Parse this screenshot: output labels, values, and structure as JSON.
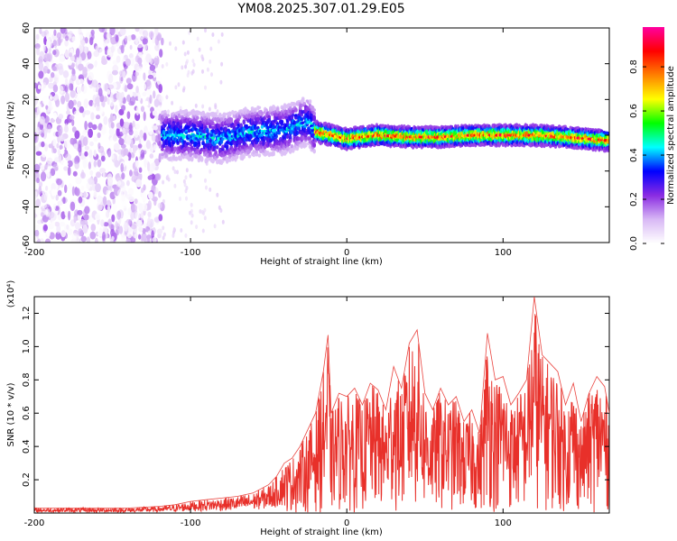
{
  "figure": {
    "title": "YM08.2025.307.01.29.E05"
  },
  "colorbar": {
    "label": "Normalized spectral amplitude",
    "ticks": [
      "0.0",
      "0.2",
      "0.4",
      "0.6",
      "0.8"
    ],
    "tick_values": [
      0.0,
      0.2,
      0.4,
      0.6,
      0.8
    ],
    "range": [
      0.0,
      0.98
    ],
    "colormap_stops": [
      "#ffffff",
      "#d8b8f5",
      "#8a2be2",
      "#0000ff",
      "#00ffff",
      "#00ff00",
      "#ffff00",
      "#ff8000",
      "#ff0000",
      "#ff00a0"
    ]
  },
  "chart_data": [
    {
      "type": "heatmap",
      "title": "YM08.2025.307.01.29.E05",
      "xlabel": "Height of straight line (km)",
      "ylabel": "Frequency (Hz)",
      "xlim": [
        -200,
        168
      ],
      "ylim": [
        -60,
        60
      ],
      "x_ticks": [
        -200,
        -100,
        0,
        100
      ],
      "x_tick_labels": [
        "-200",
        "-100",
        "0",
        "100"
      ],
      "y_ticks": [
        -60,
        -40,
        -20,
        0,
        20,
        40,
        60
      ],
      "y_tick_labels": [
        "-60",
        "-40",
        "-20",
        "0",
        "20",
        "40",
        "60"
      ],
      "bands": [
        {
          "x_range": [
            -200,
            -118
          ],
          "y_range": [
            -60,
            60
          ],
          "amplitude": [
            0.0,
            0.2
          ]
        },
        {
          "x_range": [
            -118,
            -20
          ],
          "y_range": [
            -15,
            12
          ],
          "amplitude": [
            0.1,
            0.5
          ]
        },
        {
          "x_range": [
            -20,
            168
          ],
          "y_range": [
            -6,
            5
          ],
          "amplitude": [
            0.2,
            0.95
          ]
        }
      ],
      "ridge": {
        "x": [
          -118,
          -100,
          -80,
          -60,
          -40,
          -25,
          -20,
          0,
          20,
          40,
          60,
          80,
          100,
          120,
          140,
          168
        ],
        "y": [
          0,
          0,
          -2,
          2,
          3,
          8,
          2,
          -2,
          0,
          -1,
          -1,
          0,
          0,
          0,
          -1,
          -3
        ]
      },
      "grid": false
    },
    {
      "type": "line",
      "xlabel": "Height of straight line (km)",
      "ylabel": "SNR (10 * v/v)",
      "y_scale_label": "(x10⁴)",
      "y_multiplier": 10000,
      "xlim": [
        -200,
        168
      ],
      "ylim": [
        0,
        1.3
      ],
      "x_ticks": [
        -200,
        -100,
        0,
        100
      ],
      "x_tick_labels": [
        "-200",
        "-100",
        "0",
        "100"
      ],
      "y_ticks": [
        0.2,
        0.4,
        0.6,
        0.8,
        1.0,
        1.2
      ],
      "y_tick_labels": [
        "0.2",
        "0.4",
        "0.6",
        "0.8",
        "1.0",
        "1.2"
      ],
      "series": [
        {
          "color": "#e8302a",
          "x": [
            -200,
            -180,
            -160,
            -140,
            -120,
            -110,
            -100,
            -90,
            -80,
            -70,
            -60,
            -50,
            -45,
            -40,
            -35,
            -30,
            -25,
            -20,
            -15,
            -12,
            -10,
            -5,
            0,
            5,
            10,
            15,
            20,
            25,
            30,
            35,
            40,
            45,
            50,
            55,
            60,
            65,
            70,
            75,
            80,
            85,
            90,
            95,
            100,
            105,
            110,
            115,
            120,
            125,
            130,
            135,
            140,
            145,
            150,
            155,
            160,
            165,
            168
          ],
          "y": [
            0.03,
            0.03,
            0.03,
            0.03,
            0.04,
            0.05,
            0.07,
            0.08,
            0.09,
            0.1,
            0.12,
            0.17,
            0.22,
            0.3,
            0.33,
            0.4,
            0.5,
            0.6,
            0.85,
            1.07,
            0.6,
            0.72,
            0.7,
            0.75,
            0.65,
            0.78,
            0.74,
            0.62,
            0.88,
            0.75,
            1.02,
            1.1,
            0.72,
            0.62,
            0.75,
            0.65,
            0.7,
            0.55,
            0.62,
            0.48,
            1.08,
            0.8,
            0.82,
            0.65,
            0.72,
            0.8,
            1.3,
            0.95,
            0.9,
            0.85,
            0.65,
            0.78,
            0.55,
            0.72,
            0.82,
            0.76,
            0.6
          ]
        }
      ],
      "grid": false
    }
  ]
}
